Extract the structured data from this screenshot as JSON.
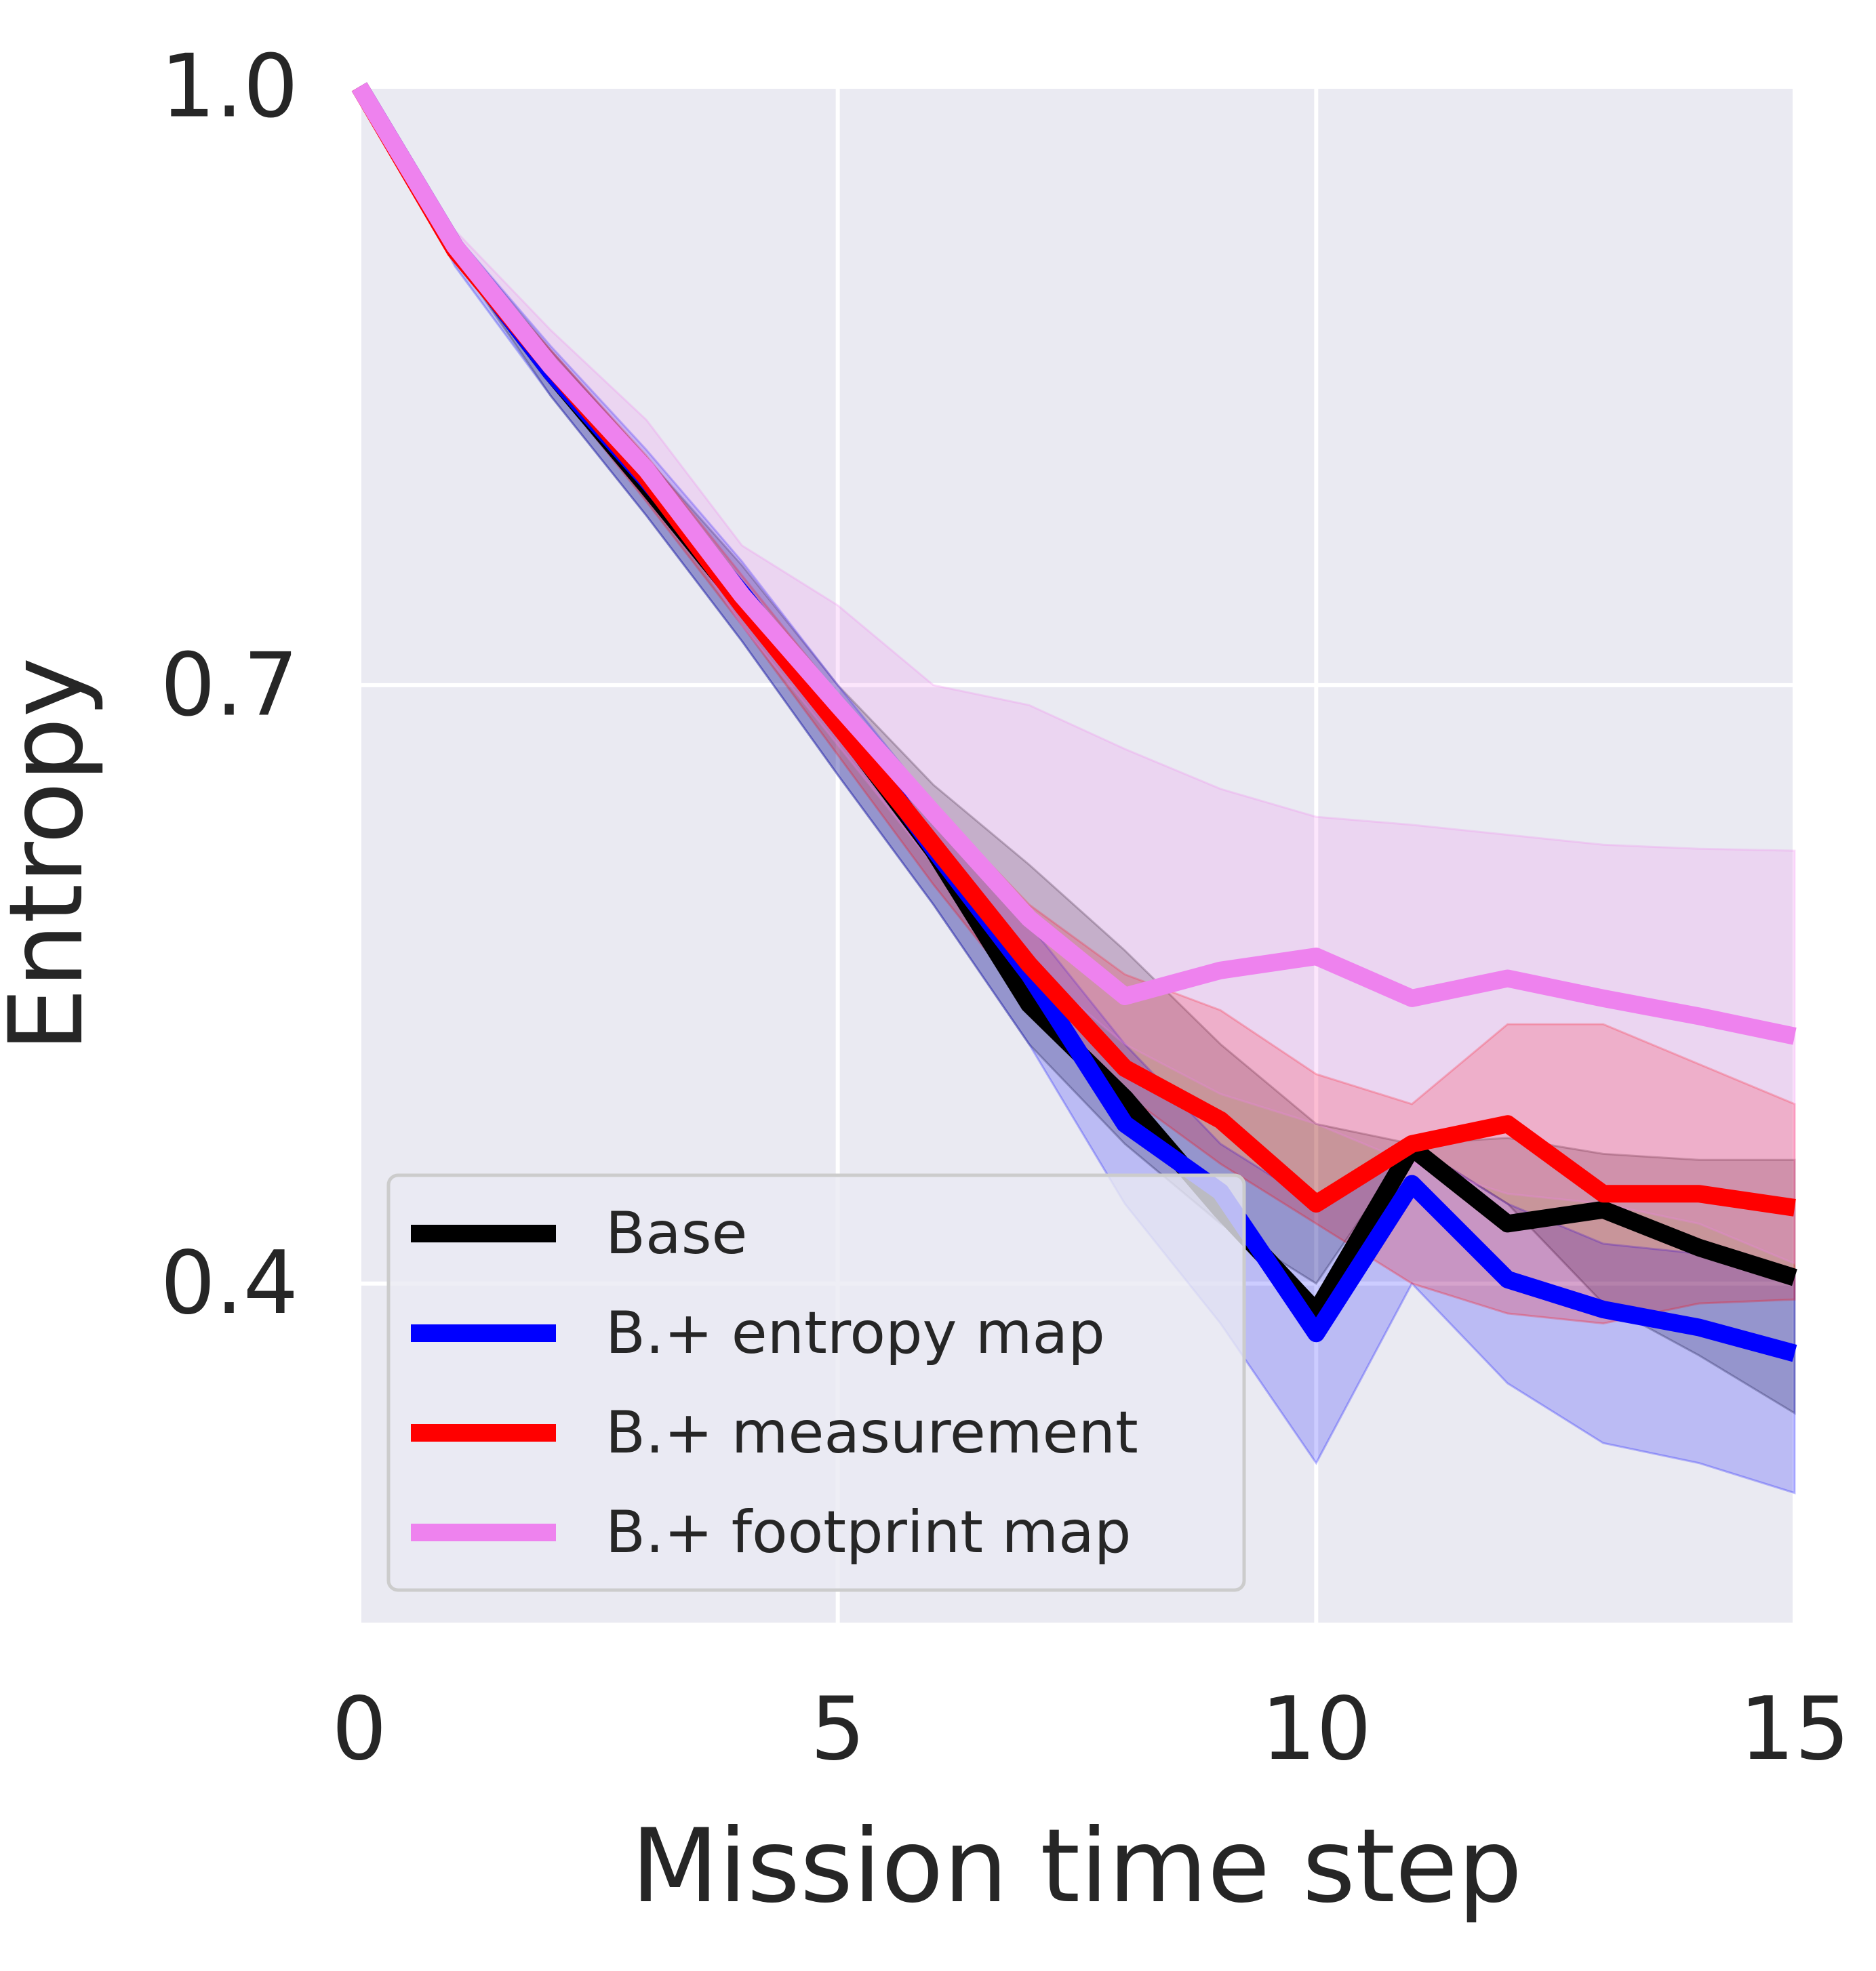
{
  "chart_data": {
    "type": "line",
    "title": "",
    "xlabel": "Mission time step",
    "ylabel": "Entropy",
    "xlim": [
      0,
      15
    ],
    "ylim": [
      0.23,
      1.0
    ],
    "xticks": [
      0,
      5,
      10,
      15
    ],
    "xtick_labels": [
      "0",
      "5",
      "10",
      "15"
    ],
    "yticks": [
      0.4,
      0.7,
      1.0
    ],
    "ytick_labels": [
      "0.4",
      "0.7",
      "1.0"
    ],
    "grid": true,
    "legend_position": "lower-left",
    "x": [
      0,
      1,
      2,
      3,
      4,
      5,
      6,
      7,
      8,
      9,
      10,
      11,
      12,
      13,
      14,
      15
    ],
    "series": [
      {
        "name": "Base",
        "color": "#000000",
        "values": [
          1.0,
          0.92,
          0.857,
          0.8,
          0.741,
          0.681,
          0.617,
          0.54,
          0.493,
          0.437,
          0.386,
          0.468,
          0.43,
          0.437,
          0.418,
          0.403
        ],
        "lower": [
          1.0,
          0.915,
          0.845,
          0.785,
          0.722,
          0.655,
          0.59,
          0.52,
          0.47,
          0.43,
          0.4,
          0.47,
          0.44,
          0.39,
          0.364,
          0.335
        ],
        "upper": [
          1.0,
          0.926,
          0.868,
          0.814,
          0.76,
          0.7,
          0.65,
          0.61,
          0.567,
          0.52,
          0.48,
          0.47,
          0.473,
          0.465,
          0.462,
          0.462
        ]
      },
      {
        "name": "B.+ entropy map",
        "color": "#0000ff",
        "values": [
          1.0,
          0.92,
          0.857,
          0.803,
          0.746,
          0.685,
          0.618,
          0.555,
          0.48,
          0.446,
          0.375,
          0.45,
          0.402,
          0.387,
          0.378,
          0.365
        ],
        "lower": [
          1.0,
          0.91,
          0.845,
          0.785,
          0.722,
          0.655,
          0.59,
          0.52,
          0.44,
          0.38,
          0.31,
          0.4,
          0.35,
          0.32,
          0.31,
          0.295
        ],
        "upper": [
          1.0,
          0.926,
          0.87,
          0.818,
          0.762,
          0.7,
          0.64,
          0.58,
          0.52,
          0.47,
          0.44,
          0.47,
          0.44,
          0.42,
          0.415,
          0.405
        ]
      },
      {
        "name": "B.+ measurement",
        "color": "#ff0000",
        "values": [
          1.0,
          0.918,
          0.86,
          0.804,
          0.74,
          0.68,
          0.62,
          0.56,
          0.508,
          0.482,
          0.44,
          0.47,
          0.48,
          0.445,
          0.445,
          0.438
        ],
        "lower": [
          1.0,
          0.915,
          0.852,
          0.792,
          0.73,
          0.665,
          0.6,
          0.54,
          0.495,
          0.46,
          0.43,
          0.4,
          0.385,
          0.38,
          0.39,
          0.392
        ],
        "upper": [
          1.0,
          0.922,
          0.868,
          0.815,
          0.755,
          0.695,
          0.64,
          0.59,
          0.555,
          0.537,
          0.505,
          0.49,
          0.53,
          0.53,
          0.51,
          0.49
        ]
      },
      {
        "name": "B.+ footprint map",
        "color": "#ee82ee",
        "values": [
          1.0,
          0.92,
          0.86,
          0.808,
          0.745,
          0.69,
          0.636,
          0.583,
          0.544,
          0.557,
          0.564,
          0.543,
          0.553,
          0.543,
          0.534,
          0.524
        ],
        "lower": [
          1.0,
          0.915,
          0.855,
          0.8,
          0.73,
          0.67,
          0.61,
          0.56,
          0.52,
          0.495,
          0.48,
          0.46,
          0.445,
          0.44,
          0.43,
          0.41
        ],
        "upper": [
          1.0,
          0.928,
          0.878,
          0.833,
          0.77,
          0.74,
          0.7,
          0.69,
          0.668,
          0.648,
          0.634,
          0.63,
          0.625,
          0.62,
          0.618,
          0.617
        ]
      }
    ]
  }
}
